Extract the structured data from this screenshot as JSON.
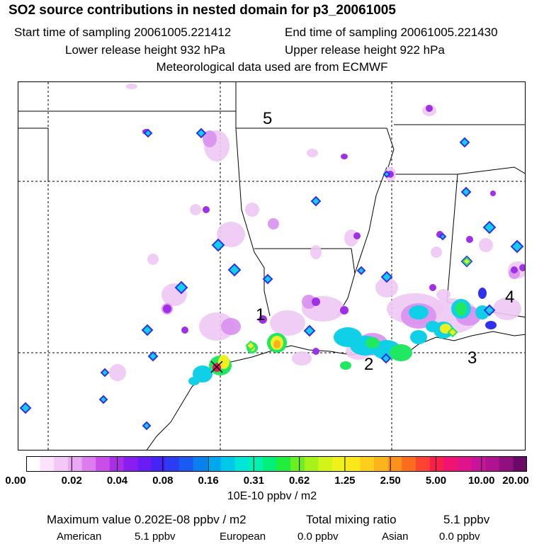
{
  "header": {
    "title": "SO2 source contributions in nested domain for p3_20061005",
    "start_label": "Start time of sampling 20061005.221412",
    "end_label": "End time of sampling 20061005.221430",
    "lower_label": "Lower release height  932 hPa",
    "upper_label": "Upper release height  922 hPa",
    "met_label": "Meteorological data used are from ECMWF"
  },
  "map": {
    "region_labels": [
      "1",
      "2",
      "3",
      "4",
      "5"
    ]
  },
  "colorbar": {
    "ticks": [
      "0.00",
      "0.02",
      "0.04",
      "0.08",
      "0.16",
      "0.31",
      "0.62",
      "1.25",
      "2.50",
      "5.00",
      "10.00",
      "20.00"
    ],
    "colors": [
      "#ffffff",
      "#fbe3fb",
      "#f4c8f6",
      "#eaa8f2",
      "#dc7cee",
      "#c94ee8",
      "#aa2ee8",
      "#8a1ef0",
      "#6a1cf5",
      "#4624f5",
      "#2c3cf5",
      "#1a5af2",
      "#0a80ee",
      "#00a8ee",
      "#00c8e8",
      "#00e6d6",
      "#00f2b0",
      "#00f07a",
      "#20ee3a",
      "#6af020",
      "#a6f21a",
      "#d2f41a",
      "#eef21a",
      "#fae81a",
      "#fcd01a",
      "#fcb41a",
      "#fc921a",
      "#fc6c1e",
      "#fc4430",
      "#fa1e4c",
      "#f01472",
      "#e0148a",
      "#c8149a",
      "#b01292",
      "#901080",
      "#6a0a66"
    ],
    "units": "10E-10 ppbv / m2"
  },
  "footer": {
    "max_label": "Maximum value  0.202E-08 ppbv / m2",
    "total_label": "Total mixing ratio",
    "total_value": "5.1 ppbv",
    "sources": [
      {
        "name": "American",
        "value": "5.1 ppbv"
      },
      {
        "name": "European",
        "value": "0.0 ppbv"
      },
      {
        "name": "Asian",
        "value": "0.0 ppbv"
      }
    ]
  },
  "concentration_colors": {
    "faint": "#eec8f4",
    "light": "#d890ee",
    "violet": "#a030e8",
    "blue": "#3030f0",
    "cyan": "#10d0e8",
    "green": "#20e860",
    "yellow": "#f0f020",
    "orange": "#fcb020",
    "red": "#e81860"
  }
}
